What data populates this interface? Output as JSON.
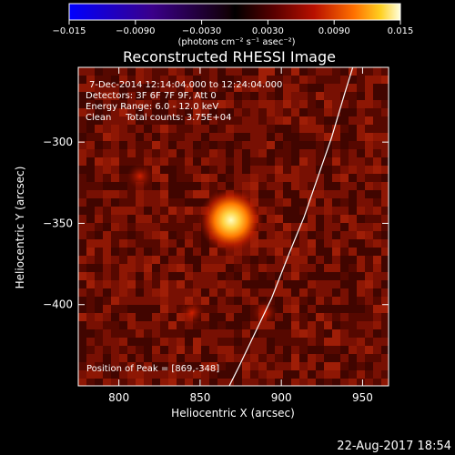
{
  "chart_data": {
    "type": "heatmap",
    "title": "Reconstructed RHESSI Image",
    "xlabel": "Heliocentric X (arcsec)",
    "ylabel": "Heliocentric Y (arcsec)",
    "xlim": [
      775,
      966
    ],
    "ylim": [
      -450,
      -254
    ],
    "x_ticks": [
      800,
      850,
      900,
      950
    ],
    "y_ticks": [
      -300,
      -350,
      -400
    ],
    "colorbar": {
      "min": -0.015,
      "max": 0.015,
      "ticks": [
        "−0.015",
        "−0.0090",
        "−0.0030",
        "0.0030",
        "0.0090",
        "0.015"
      ],
      "unit_label": "(photons cm⁻² s⁻¹ asec⁻²)"
    },
    "info_lines": [
      "7-Dec-2014 12:14:04.000 to 12:24:04.000",
      "Detectors: 3F 6F 7F 9F, Att 0",
      "Energy Range: 6.0 - 12.0 keV",
      "Clean     Total counts: 3.75E+04"
    ],
    "peak_label": "Position of Peak = [869,-348]",
    "peak": {
      "x": 869,
      "y": -348,
      "value": 0.015
    },
    "secondary_sources": [
      {
        "x": 813,
        "y": -321,
        "value": 0.0035
      },
      {
        "x": 890,
        "y": -405,
        "value": 0.003
      },
      {
        "x": 845,
        "y": -405,
        "value": 0.0025
      }
    ],
    "limb_curve": {
      "x": [
        868,
        874,
        884,
        894,
        905,
        914,
        923,
        931,
        939,
        944
      ],
      "y": [
        -450,
        -438,
        -417,
        -396,
        -368,
        -346,
        -320,
        -297,
        -270,
        -254
      ]
    },
    "grid": false
  },
  "footer": {
    "timestamp": "22-Aug-2017 18:54"
  },
  "colors": {
    "background": "#000000",
    "axes": "#ffffff"
  }
}
